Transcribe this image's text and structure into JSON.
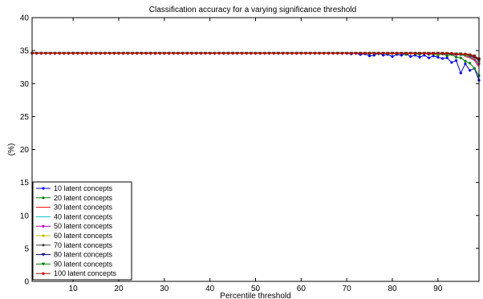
{
  "chart_data": {
    "type": "line",
    "title": "Classification accuracy for a varying significance threshold",
    "xlabel": "Percentile threshold",
    "ylabel": "(%)",
    "xlim": [
      1,
      99
    ],
    "ylim": [
      0,
      40
    ],
    "xticks": [
      10,
      20,
      30,
      40,
      50,
      60,
      70,
      80,
      90
    ],
    "yticks": [
      0,
      5,
      10,
      15,
      20,
      25,
      30,
      35,
      40
    ],
    "grid": false,
    "legend_position": "lower-left",
    "x": [
      1,
      70,
      71,
      72,
      73,
      74,
      75,
      76,
      77,
      78,
      79,
      80,
      81,
      82,
      83,
      84,
      85,
      86,
      87,
      88,
      89,
      90,
      91,
      92,
      93,
      94,
      95,
      96,
      97,
      98,
      99
    ],
    "series": [
      {
        "name": "10 latent concepts",
        "color": "#0000ff",
        "marker": "dot",
        "values": [
          34.6,
          34.6,
          34.5,
          34.6,
          34.4,
          34.5,
          34.2,
          34.3,
          34.6,
          34.3,
          34.4,
          34.1,
          34.4,
          34.3,
          34.5,
          34.1,
          34.3,
          34.0,
          34.3,
          33.9,
          34.2,
          34.0,
          33.8,
          33.9,
          33.2,
          33.5,
          31.6,
          33.0,
          32.0,
          32.3,
          30.5
        ]
      },
      {
        "name": "20 latent concepts",
        "color": "#008000",
        "marker": "dot",
        "values": [
          34.6,
          34.6,
          34.6,
          34.6,
          34.6,
          34.6,
          34.5,
          34.6,
          34.5,
          34.6,
          34.5,
          34.6,
          34.5,
          34.6,
          34.4,
          34.6,
          34.5,
          34.4,
          34.6,
          34.4,
          34.5,
          34.3,
          34.5,
          34.2,
          34.4,
          34.0,
          33.9,
          33.4,
          33.1,
          32.3,
          31.2
        ]
      },
      {
        "name": "30 latent concepts",
        "color": "#ff0000",
        "marker": "none",
        "values": [
          34.6,
          34.6,
          34.6,
          34.6,
          34.6,
          34.6,
          34.6,
          34.6,
          34.6,
          34.6,
          34.6,
          34.5,
          34.6,
          34.6,
          34.6,
          34.5,
          34.6,
          34.5,
          34.6,
          34.5,
          34.5,
          34.6,
          34.4,
          34.5,
          34.4,
          34.3,
          34.4,
          34.1,
          33.9,
          33.5,
          32.5
        ]
      },
      {
        "name": "40 latent concepts",
        "color": "#00bfbf",
        "marker": "none",
        "values": [
          34.6,
          34.6,
          34.6,
          34.6,
          34.6,
          34.6,
          34.6,
          34.6,
          34.6,
          34.6,
          34.6,
          34.6,
          34.6,
          34.6,
          34.6,
          34.6,
          34.6,
          34.5,
          34.6,
          34.5,
          34.6,
          34.5,
          34.5,
          34.5,
          34.4,
          34.4,
          34.3,
          34.2,
          34.0,
          33.6,
          32.8
        ]
      },
      {
        "name": "50 latent concepts",
        "color": "#bf00bf",
        "marker": "dot",
        "values": [
          34.6,
          34.6,
          34.6,
          34.6,
          34.6,
          34.6,
          34.6,
          34.6,
          34.6,
          34.6,
          34.6,
          34.6,
          34.6,
          34.6,
          34.6,
          34.6,
          34.6,
          34.6,
          34.6,
          34.5,
          34.6,
          34.5,
          34.6,
          34.5,
          34.5,
          34.4,
          34.4,
          34.3,
          34.1,
          33.7,
          33.0
        ]
      },
      {
        "name": "60 latent concepts",
        "color": "#bfbf00",
        "marker": "dot",
        "values": [
          34.6,
          34.6,
          34.6,
          34.6,
          34.6,
          34.6,
          34.6,
          34.6,
          34.6,
          34.6,
          34.6,
          34.6,
          34.6,
          34.6,
          34.6,
          34.6,
          34.6,
          34.6,
          34.6,
          34.6,
          34.6,
          34.5,
          34.6,
          34.5,
          34.5,
          34.5,
          34.4,
          34.3,
          34.2,
          33.9,
          33.3
        ]
      },
      {
        "name": "70 latent concepts",
        "color": "#404040",
        "marker": "dot",
        "values": [
          34.6,
          34.6,
          34.6,
          34.6,
          34.6,
          34.6,
          34.6,
          34.6,
          34.6,
          34.6,
          34.6,
          34.6,
          34.6,
          34.6,
          34.6,
          34.6,
          34.6,
          34.6,
          34.6,
          34.6,
          34.6,
          34.6,
          34.5,
          34.6,
          34.5,
          34.5,
          34.4,
          34.4,
          34.2,
          34.0,
          33.5
        ]
      },
      {
        "name": "80 latent concepts",
        "color": "#00007f",
        "marker": "triangle",
        "values": [
          34.6,
          34.6,
          34.6,
          34.6,
          34.6,
          34.6,
          34.6,
          34.6,
          34.6,
          34.6,
          34.6,
          34.6,
          34.6,
          34.6,
          34.6,
          34.6,
          34.6,
          34.6,
          34.6,
          34.6,
          34.6,
          34.6,
          34.6,
          34.5,
          34.5,
          34.5,
          34.5,
          34.4,
          34.3,
          34.1,
          33.6
        ]
      },
      {
        "name": "90 latent concepts",
        "color": "#007f00",
        "marker": "triangle",
        "values": [
          34.6,
          34.6,
          34.6,
          34.6,
          34.6,
          34.6,
          34.6,
          34.6,
          34.6,
          34.6,
          34.6,
          34.6,
          34.6,
          34.6,
          34.6,
          34.6,
          34.6,
          34.6,
          34.6,
          34.6,
          34.6,
          34.6,
          34.6,
          34.6,
          34.5,
          34.5,
          34.5,
          34.4,
          34.3,
          34.2,
          33.7
        ]
      },
      {
        "name": "100 latent concepts",
        "color": "#bf0000",
        "marker": "dot",
        "values": [
          34.6,
          34.6,
          34.6,
          34.6,
          34.6,
          34.6,
          34.6,
          34.6,
          34.6,
          34.6,
          34.6,
          34.6,
          34.6,
          34.6,
          34.6,
          34.6,
          34.6,
          34.6,
          34.6,
          34.6,
          34.6,
          34.6,
          34.6,
          34.6,
          34.6,
          34.5,
          34.5,
          34.5,
          34.4,
          34.2,
          33.8
        ]
      }
    ]
  }
}
